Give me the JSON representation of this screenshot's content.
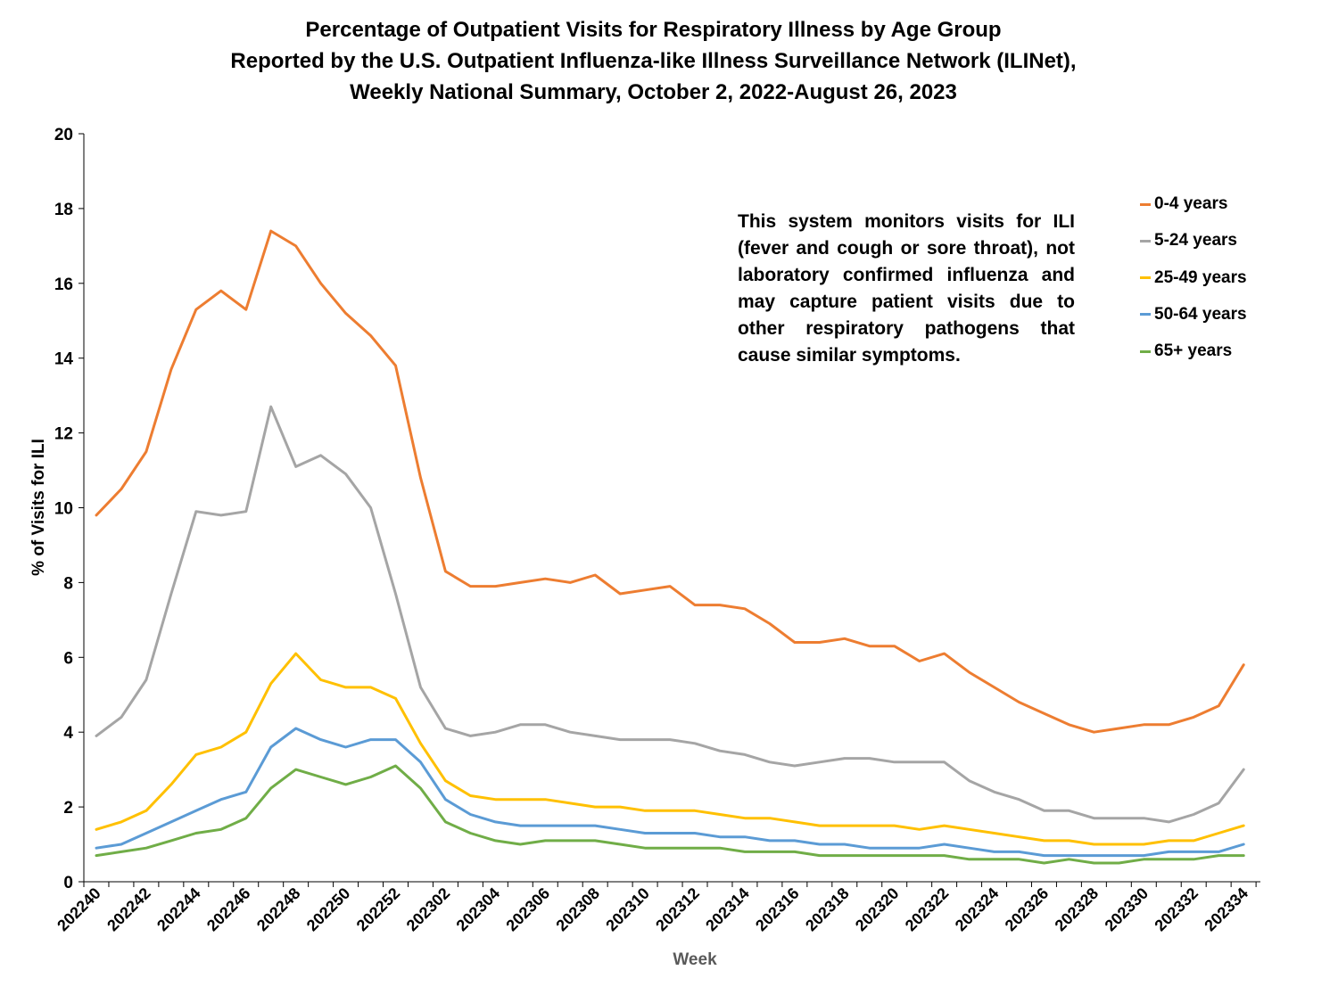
{
  "chart_data": {
    "type": "line",
    "title": [
      "Percentage of Outpatient Visits for Respiratory Illness by Age Group",
      "Reported by the U.S. Outpatient Influenza-like Illness Surveillance Network (ILINet),",
      "Weekly National Summary, October 2, 2022-August 26, 2023"
    ],
    "xlabel": "Week",
    "ylabel": "% of Visits for ILI",
    "ylim": [
      0,
      20
    ],
    "yticks": [
      0,
      2,
      4,
      6,
      8,
      10,
      12,
      14,
      16,
      18,
      20
    ],
    "x": [
      "202240",
      "202241",
      "202242",
      "202243",
      "202244",
      "202245",
      "202246",
      "202247",
      "202248",
      "202249",
      "202250",
      "202251",
      "202252",
      "202301",
      "202302",
      "202303",
      "202304",
      "202305",
      "202306",
      "202307",
      "202308",
      "202309",
      "202310",
      "202311",
      "202312",
      "202313",
      "202314",
      "202315",
      "202316",
      "202317",
      "202318",
      "202319",
      "202320",
      "202321",
      "202322",
      "202323",
      "202324",
      "202325",
      "202326",
      "202327",
      "202328",
      "202329",
      "202330",
      "202331",
      "202332",
      "202333",
      "202334"
    ],
    "xtick_labels": [
      "202240",
      "202242",
      "202244",
      "202246",
      "202248",
      "202250",
      "202252",
      "202302",
      "202304",
      "202306",
      "202308",
      "202310",
      "202312",
      "202314",
      "202316",
      "202318",
      "202320",
      "202322",
      "202324",
      "202326",
      "202328",
      "202330",
      "202332",
      "202334"
    ],
    "annotation": "This system monitors visits for ILI (fever and cough or sore throat), not laboratory confirmed influenza and may capture patient visits due to other respiratory pathogens that cause similar symptoms.",
    "legend_position": "top-right",
    "grid": false,
    "series": [
      {
        "name": "0-4 years",
        "color": "#ED7D31",
        "values": [
          9.8,
          10.5,
          11.5,
          13.7,
          15.3,
          15.8,
          15.3,
          17.4,
          17.0,
          16.0,
          15.2,
          14.6,
          13.8,
          10.8,
          8.3,
          7.9,
          7.9,
          8.0,
          8.1,
          8.0,
          8.2,
          7.7,
          7.8,
          7.9,
          7.4,
          7.4,
          7.3,
          6.9,
          6.4,
          6.4,
          6.5,
          6.3,
          6.3,
          5.9,
          6.1,
          5.6,
          5.2,
          4.8,
          4.5,
          4.2,
          4.0,
          4.1,
          4.2,
          4.2,
          4.4,
          4.7,
          5.8
        ]
      },
      {
        "name": "5-24 years",
        "color": "#A5A5A5",
        "values": [
          3.9,
          4.4,
          5.4,
          7.7,
          9.9,
          9.8,
          9.9,
          12.7,
          11.1,
          11.4,
          10.9,
          10.0,
          7.7,
          5.2,
          4.1,
          3.9,
          4.0,
          4.2,
          4.2,
          4.0,
          3.9,
          3.8,
          3.8,
          3.8,
          3.7,
          3.5,
          3.4,
          3.2,
          3.1,
          3.2,
          3.3,
          3.3,
          3.2,
          3.2,
          3.2,
          2.7,
          2.4,
          2.2,
          1.9,
          1.9,
          1.7,
          1.7,
          1.7,
          1.6,
          1.8,
          2.1,
          3.0
        ]
      },
      {
        "name": "25-49 years",
        "color": "#FFC000",
        "values": [
          1.4,
          1.6,
          1.9,
          2.6,
          3.4,
          3.6,
          4.0,
          5.3,
          6.1,
          5.4,
          5.2,
          5.2,
          4.9,
          3.7,
          2.7,
          2.3,
          2.2,
          2.2,
          2.2,
          2.1,
          2.0,
          2.0,
          1.9,
          1.9,
          1.9,
          1.8,
          1.7,
          1.7,
          1.6,
          1.5,
          1.5,
          1.5,
          1.5,
          1.4,
          1.5,
          1.4,
          1.3,
          1.2,
          1.1,
          1.1,
          1.0,
          1.0,
          1.0,
          1.1,
          1.1,
          1.3,
          1.5
        ]
      },
      {
        "name": "50-64 years",
        "color": "#5B9BD5",
        "values": [
          0.9,
          1.0,
          1.3,
          1.6,
          1.9,
          2.2,
          2.4,
          3.6,
          4.1,
          3.8,
          3.6,
          3.8,
          3.8,
          3.2,
          2.2,
          1.8,
          1.6,
          1.5,
          1.5,
          1.5,
          1.5,
          1.4,
          1.3,
          1.3,
          1.3,
          1.2,
          1.2,
          1.1,
          1.1,
          1.0,
          1.0,
          0.9,
          0.9,
          0.9,
          1.0,
          0.9,
          0.8,
          0.8,
          0.7,
          0.7,
          0.7,
          0.7,
          0.7,
          0.8,
          0.8,
          0.8,
          1.0
        ]
      },
      {
        "name": "65+ years",
        "color": "#70AD47",
        "values": [
          0.7,
          0.8,
          0.9,
          1.1,
          1.3,
          1.4,
          1.7,
          2.5,
          3.0,
          2.8,
          2.6,
          2.8,
          3.1,
          2.5,
          1.6,
          1.3,
          1.1,
          1.0,
          1.1,
          1.1,
          1.1,
          1.0,
          0.9,
          0.9,
          0.9,
          0.9,
          0.8,
          0.8,
          0.8,
          0.7,
          0.7,
          0.7,
          0.7,
          0.7,
          0.7,
          0.6,
          0.6,
          0.6,
          0.5,
          0.6,
          0.5,
          0.5,
          0.6,
          0.6,
          0.6,
          0.7,
          0.7
        ]
      }
    ]
  }
}
